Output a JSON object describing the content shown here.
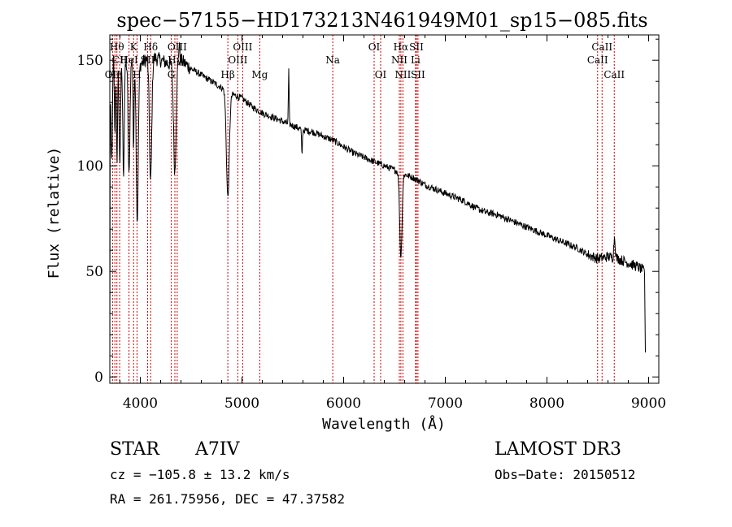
{
  "chart_data": {
    "type": "line",
    "title": "spec−57155−HD173213N461949M01_sp15−085.fits",
    "xlabel": "Wavelength (Å)",
    "ylabel": "Flux (relative)",
    "xlim": [
      3700,
      9100
    ],
    "ylim": [
      -3,
      162
    ],
    "xticks": [
      4000,
      5000,
      6000,
      7000,
      8000,
      9000
    ],
    "yticks": [
      0,
      50,
      100,
      150
    ],
    "tick_labels_x": [
      "4000",
      "5000",
      "6000",
      "7000",
      "8000",
      "9000"
    ],
    "tick_labels_y": [
      "0",
      "50",
      "100",
      "150"
    ],
    "line_color": "#000000",
    "marker_color": "#cc0000",
    "continuum": [
      [
        3700,
        0
      ],
      [
        3702,
        125
      ],
      [
        3720,
        150
      ],
      [
        3760,
        156
      ],
      [
        3800,
        145
      ],
      [
        3900,
        150
      ],
      [
        4000,
        148
      ],
      [
        4100,
        152
      ],
      [
        4200,
        150
      ],
      [
        4300,
        148
      ],
      [
        4350,
        153
      ],
      [
        4400,
        150
      ],
      [
        4500,
        146
      ],
      [
        4600,
        143
      ],
      [
        4700,
        140
      ],
      [
        4800,
        137
      ],
      [
        4900,
        134
      ],
      [
        5000,
        132
      ],
      [
        5100,
        128
      ],
      [
        5200,
        125
      ],
      [
        5300,
        123
      ],
      [
        5400,
        121
      ],
      [
        5500,
        119
      ],
      [
        5600,
        117
      ],
      [
        5700,
        116
      ],
      [
        5800,
        114
      ],
      [
        5900,
        112
      ],
      [
        6000,
        109
      ],
      [
        6100,
        106
      ],
      [
        6200,
        104
      ],
      [
        6300,
        102
      ],
      [
        6400,
        100
      ],
      [
        6500,
        98
      ],
      [
        6600,
        96
      ],
      [
        6700,
        94
      ],
      [
        6800,
        91
      ],
      [
        6900,
        89
      ],
      [
        7000,
        87
      ],
      [
        7100,
        85
      ],
      [
        7200,
        83
      ],
      [
        7300,
        80
      ],
      [
        7400,
        78
      ],
      [
        7500,
        77
      ],
      [
        7600,
        75
      ],
      [
        7700,
        73
      ],
      [
        7800,
        71
      ],
      [
        7900,
        69
      ],
      [
        8000,
        67
      ],
      [
        8100,
        65
      ],
      [
        8200,
        63
      ],
      [
        8300,
        61
      ],
      [
        8400,
        58
      ],
      [
        8500,
        56
      ],
      [
        8600,
        57
      ],
      [
        8700,
        56
      ],
      [
        8800,
        54
      ],
      [
        8900,
        52
      ],
      [
        8960,
        50
      ],
      [
        8970,
        2
      ]
    ],
    "absorption": [
      {
        "x": 3720,
        "depth": 50,
        "width": 8
      },
      {
        "x": 3750,
        "depth": 40,
        "width": 8
      },
      {
        "x": 3771,
        "depth": 50,
        "width": 8
      },
      {
        "x": 3798,
        "depth": 45,
        "width": 9
      },
      {
        "x": 3835,
        "depth": 50,
        "width": 10
      },
      {
        "x": 3889,
        "depth": 55,
        "width": 12
      },
      {
        "x": 3934,
        "depth": 45,
        "width": 6
      },
      {
        "x": 3970,
        "depth": 75,
        "width": 14
      },
      {
        "x": 4101,
        "depth": 60,
        "width": 16
      },
      {
        "x": 4340,
        "depth": 55,
        "width": 18
      },
      {
        "x": 4861,
        "depth": 50,
        "width": 20
      },
      {
        "x": 5590,
        "depth": 12,
        "width": 6
      },
      {
        "x": 6563,
        "depth": 40,
        "width": 16
      }
    ],
    "emission": [
      {
        "x": 4383,
        "height": 8,
        "width": 6
      },
      {
        "x": 5460,
        "height": 25,
        "width": 5
      },
      {
        "x": 8665,
        "height": 10,
        "width": 10
      }
    ],
    "lines": [
      {
        "x": 3727,
        "name": "OII",
        "row": 3
      },
      {
        "x": 3750,
        "name": "Hη",
        "row": 3
      },
      {
        "x": 3770,
        "name": "Hθ",
        "row": 1
      },
      {
        "x": 3797,
        "name": "CII",
        "row": 2
      },
      {
        "x": 3889,
        "name": "HeI",
        "row": 2
      },
      {
        "x": 3934,
        "name": "K",
        "row": 1
      },
      {
        "x": 3968,
        "name": "H",
        "row": 3
      },
      {
        "x": 4072,
        "name": "SII",
        "row": 2
      },
      {
        "x": 4102,
        "name": "Hδ",
        "row": 1
      },
      {
        "x": 4304,
        "name": "G",
        "row": 3
      },
      {
        "x": 4340,
        "name": "Hγ",
        "row": 2
      },
      {
        "x": 4363,
        "name": "OIII",
        "row": 1
      },
      {
        "x": 4861,
        "name": "Hβ",
        "row": 3
      },
      {
        "x": 4959,
        "name": "OIII",
        "row": 2
      },
      {
        "x": 5007,
        "name": "OIII",
        "row": 1
      },
      {
        "x": 5175,
        "name": "Mg",
        "row": 3
      },
      {
        "x": 5893,
        "name": "Na",
        "row": 2
      },
      {
        "x": 6300,
        "name": "OI",
        "row": 1
      },
      {
        "x": 6364,
        "name": "OI",
        "row": 3
      },
      {
        "x": 6548,
        "name": "NII",
        "row": 2
      },
      {
        "x": 6563,
        "name": "Hα",
        "row": 1
      },
      {
        "x": 6583,
        "name": "NII",
        "row": 3
      },
      {
        "x": 6707,
        "name": "Li",
        "row": 2
      },
      {
        "x": 6716,
        "name": "SII",
        "row": 1
      },
      {
        "x": 6731,
        "name": "SII",
        "row": 3
      },
      {
        "x": 8498,
        "name": "CaII",
        "row": 2
      },
      {
        "x": 8542,
        "name": "CaII",
        "row": 1
      },
      {
        "x": 8662,
        "name": "CaII",
        "row": 3
      }
    ]
  },
  "info": {
    "object_class": "STAR",
    "subclass": "A7IV",
    "survey": "LAMOST DR3",
    "cz": "cz = −105.8 ± 13.2 km/s",
    "obs_date": "Obs−Date: 20150512",
    "coords": "RA = 261.75956, DEC =  47.37582"
  }
}
